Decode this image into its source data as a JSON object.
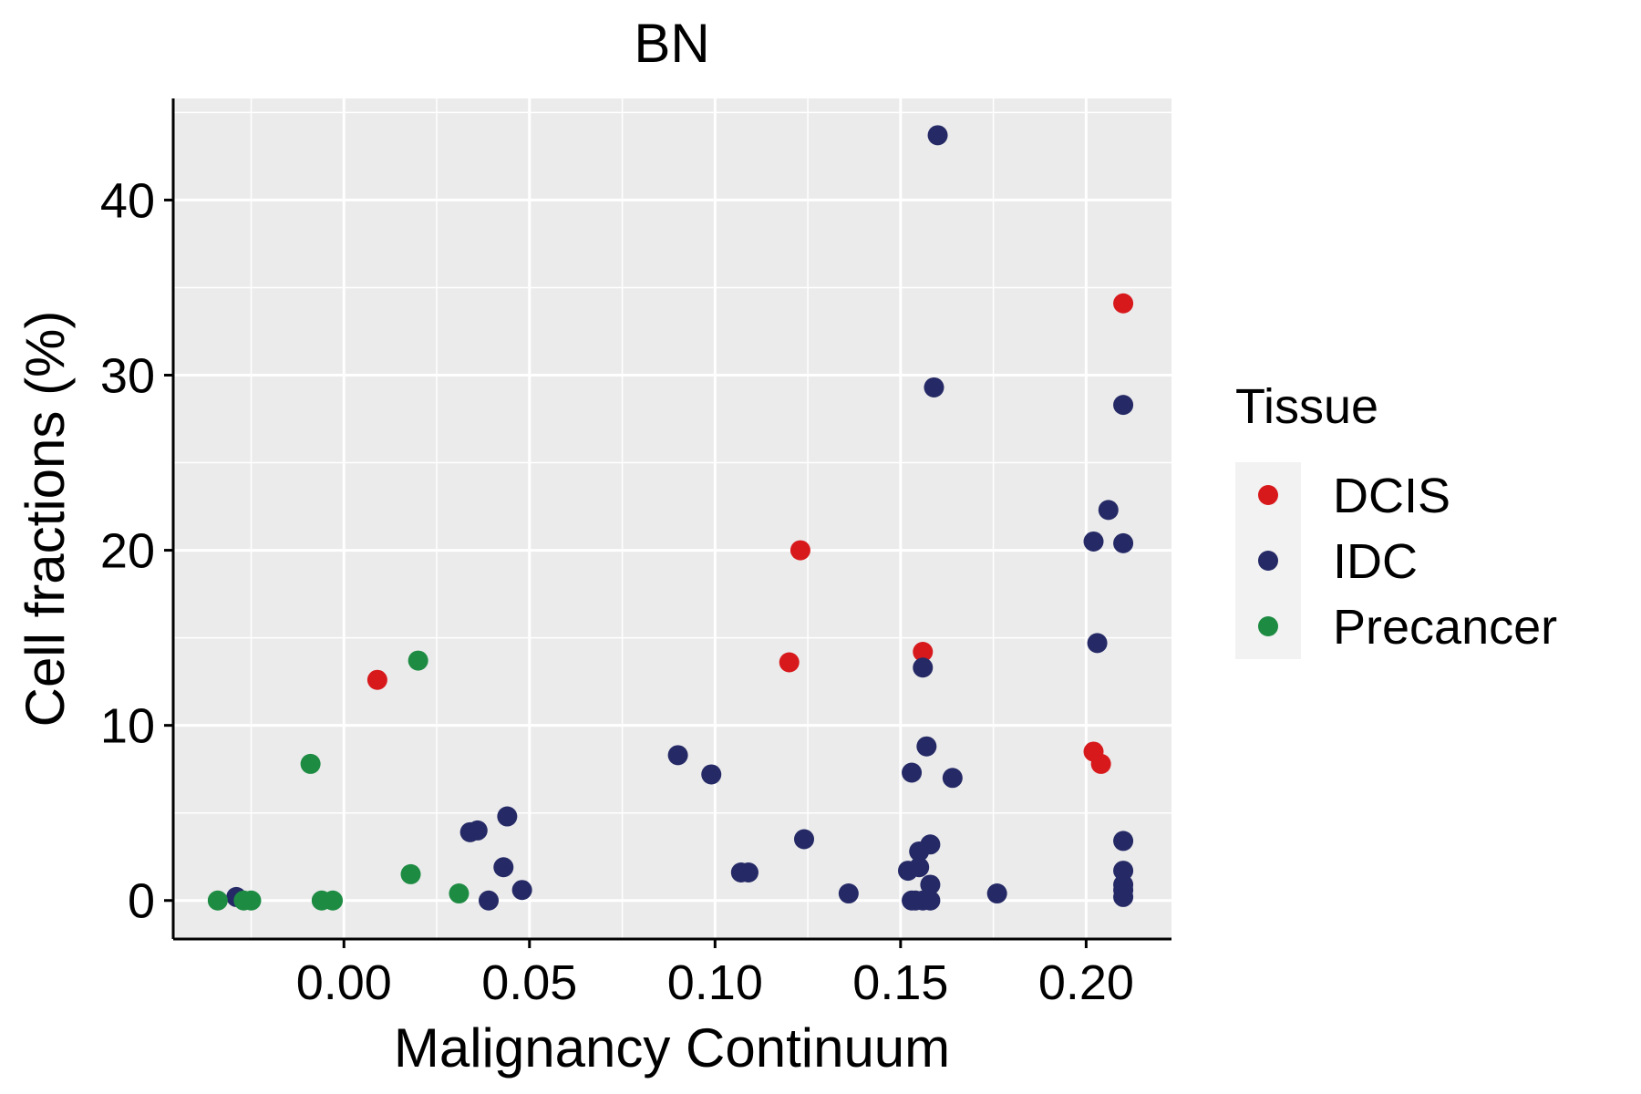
{
  "chart_data": {
    "type": "scatter",
    "title": "BN",
    "xlabel": "Malignancy Continuum",
    "ylabel": "Cell fractions (%)",
    "xlim": [
      -0.046,
      0.223
    ],
    "ylim": [
      -2.2,
      45.8
    ],
    "x_ticks": [
      0.0,
      0.05,
      0.1,
      0.15,
      0.2
    ],
    "x_tick_labels": [
      "0.00",
      "0.05",
      "0.10",
      "0.15",
      "0.20"
    ],
    "y_ticks": [
      0,
      10,
      20,
      30,
      40
    ],
    "y_tick_labels": [
      "0",
      "10",
      "20",
      "30",
      "40"
    ],
    "grid": true,
    "legend": {
      "title": "Tissue",
      "placement": "right",
      "entries": [
        {
          "label": "DCIS",
          "color": "#d7191c"
        },
        {
          "label": "IDC",
          "color": "#252a66"
        },
        {
          "label": "Precancer",
          "color": "#1e8b43"
        }
      ]
    },
    "series": [
      {
        "name": "DCIS",
        "color": "#d7191c",
        "points": [
          [
            0.009,
            12.6
          ],
          [
            0.12,
            13.6
          ],
          [
            0.123,
            20.0
          ],
          [
            0.156,
            14.2
          ],
          [
            0.202,
            8.5
          ],
          [
            0.204,
            7.8
          ],
          [
            0.21,
            34.1
          ]
        ]
      },
      {
        "name": "IDC",
        "color": "#252a66",
        "points": [
          [
            -0.029,
            0.2
          ],
          [
            0.034,
            3.9
          ],
          [
            0.036,
            4.0
          ],
          [
            0.039,
            0.0
          ],
          [
            0.043,
            1.9
          ],
          [
            0.044,
            4.8
          ],
          [
            0.048,
            0.6
          ],
          [
            0.09,
            8.3
          ],
          [
            0.099,
            7.2
          ],
          [
            0.107,
            1.6
          ],
          [
            0.109,
            1.6
          ],
          [
            0.124,
            3.5
          ],
          [
            0.136,
            0.4
          ],
          [
            0.152,
            1.7
          ],
          [
            0.153,
            0.0
          ],
          [
            0.153,
            7.3
          ],
          [
            0.154,
            0.0
          ],
          [
            0.155,
            2.8
          ],
          [
            0.155,
            1.9
          ],
          [
            0.156,
            13.3
          ],
          [
            0.156,
            0.0
          ],
          [
            0.157,
            8.8
          ],
          [
            0.158,
            0.0
          ],
          [
            0.158,
            0.9
          ],
          [
            0.158,
            3.2
          ],
          [
            0.159,
            29.3
          ],
          [
            0.16,
            43.7
          ],
          [
            0.164,
            7.0
          ],
          [
            0.176,
            0.4
          ],
          [
            0.202,
            20.5
          ],
          [
            0.203,
            14.7
          ],
          [
            0.206,
            22.3
          ],
          [
            0.21,
            20.4
          ],
          [
            0.21,
            28.3
          ],
          [
            0.21,
            3.4
          ],
          [
            0.21,
            1.7
          ],
          [
            0.21,
            0.9
          ],
          [
            0.21,
            0.6
          ],
          [
            0.21,
            0.2
          ]
        ]
      },
      {
        "name": "Precancer",
        "color": "#1e8b43",
        "points": [
          [
            -0.034,
            0.0
          ],
          [
            -0.027,
            0.0
          ],
          [
            -0.025,
            0.0
          ],
          [
            -0.009,
            7.8
          ],
          [
            -0.006,
            0.0
          ],
          [
            -0.003,
            0.0
          ],
          [
            0.018,
            1.5
          ],
          [
            0.02,
            13.7
          ],
          [
            0.031,
            0.4
          ]
        ]
      }
    ]
  },
  "style": {
    "panel_bg": "#ebebeb",
    "grid_color": "#ffffff",
    "axis_color": "#000000",
    "legend_key_bg": "#f2f2f2"
  }
}
